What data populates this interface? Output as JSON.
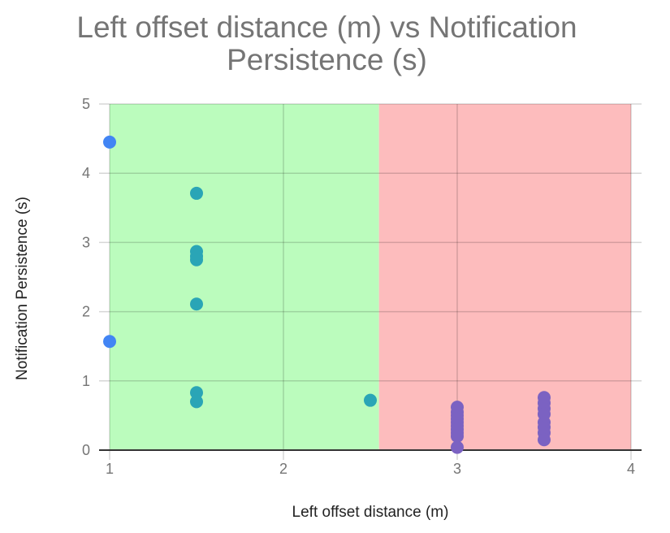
{
  "chart_data": {
    "type": "scatter",
    "title": [
      "Left offset distance (m) vs Notification",
      "Persistence (s)"
    ],
    "xlabel": "Left offset distance (m)",
    "ylabel": "Notification Persistence (s)",
    "xlim": [
      1,
      4
    ],
    "ylim": [
      0,
      5
    ],
    "xticks": [
      "1",
      "2",
      "3",
      "4"
    ],
    "yticks": [
      "0",
      "1",
      "2",
      "3",
      "4",
      "5"
    ],
    "grid": true,
    "legend": "none",
    "regions": [
      {
        "x_start": 1,
        "x_end": 2.55,
        "color": "#bbfcbd"
      },
      {
        "x_start": 2.55,
        "x_end": 4,
        "color": "#fdbcbd"
      }
    ],
    "series": [
      {
        "color": "#4285f4",
        "points": [
          [
            1,
            4.45
          ],
          [
            1,
            1.57
          ]
        ]
      },
      {
        "color": "#2aa5b6",
        "points": [
          [
            1.5,
            3.71
          ],
          [
            1.5,
            2.87
          ],
          [
            1.5,
            2.8
          ],
          [
            1.5,
            2.75
          ],
          [
            1.5,
            2.11
          ],
          [
            1.5,
            0.83
          ],
          [
            1.5,
            0.7
          ],
          [
            2.5,
            0.72
          ]
        ]
      },
      {
        "color": "#7b62c2",
        "points": [
          [
            3,
            0.62
          ],
          [
            3,
            0.55
          ],
          [
            3,
            0.5
          ],
          [
            3,
            0.45
          ],
          [
            3,
            0.4
          ],
          [
            3,
            0.35
          ],
          [
            3,
            0.3
          ],
          [
            3,
            0.25
          ],
          [
            3,
            0.2
          ],
          [
            3,
            0.04
          ],
          [
            3.5,
            0.76
          ],
          [
            3.5,
            0.68
          ],
          [
            3.5,
            0.6
          ],
          [
            3.5,
            0.52
          ],
          [
            3.5,
            0.4
          ],
          [
            3.5,
            0.33
          ],
          [
            3.5,
            0.25
          ],
          [
            3.5,
            0.15
          ]
        ]
      }
    ]
  }
}
